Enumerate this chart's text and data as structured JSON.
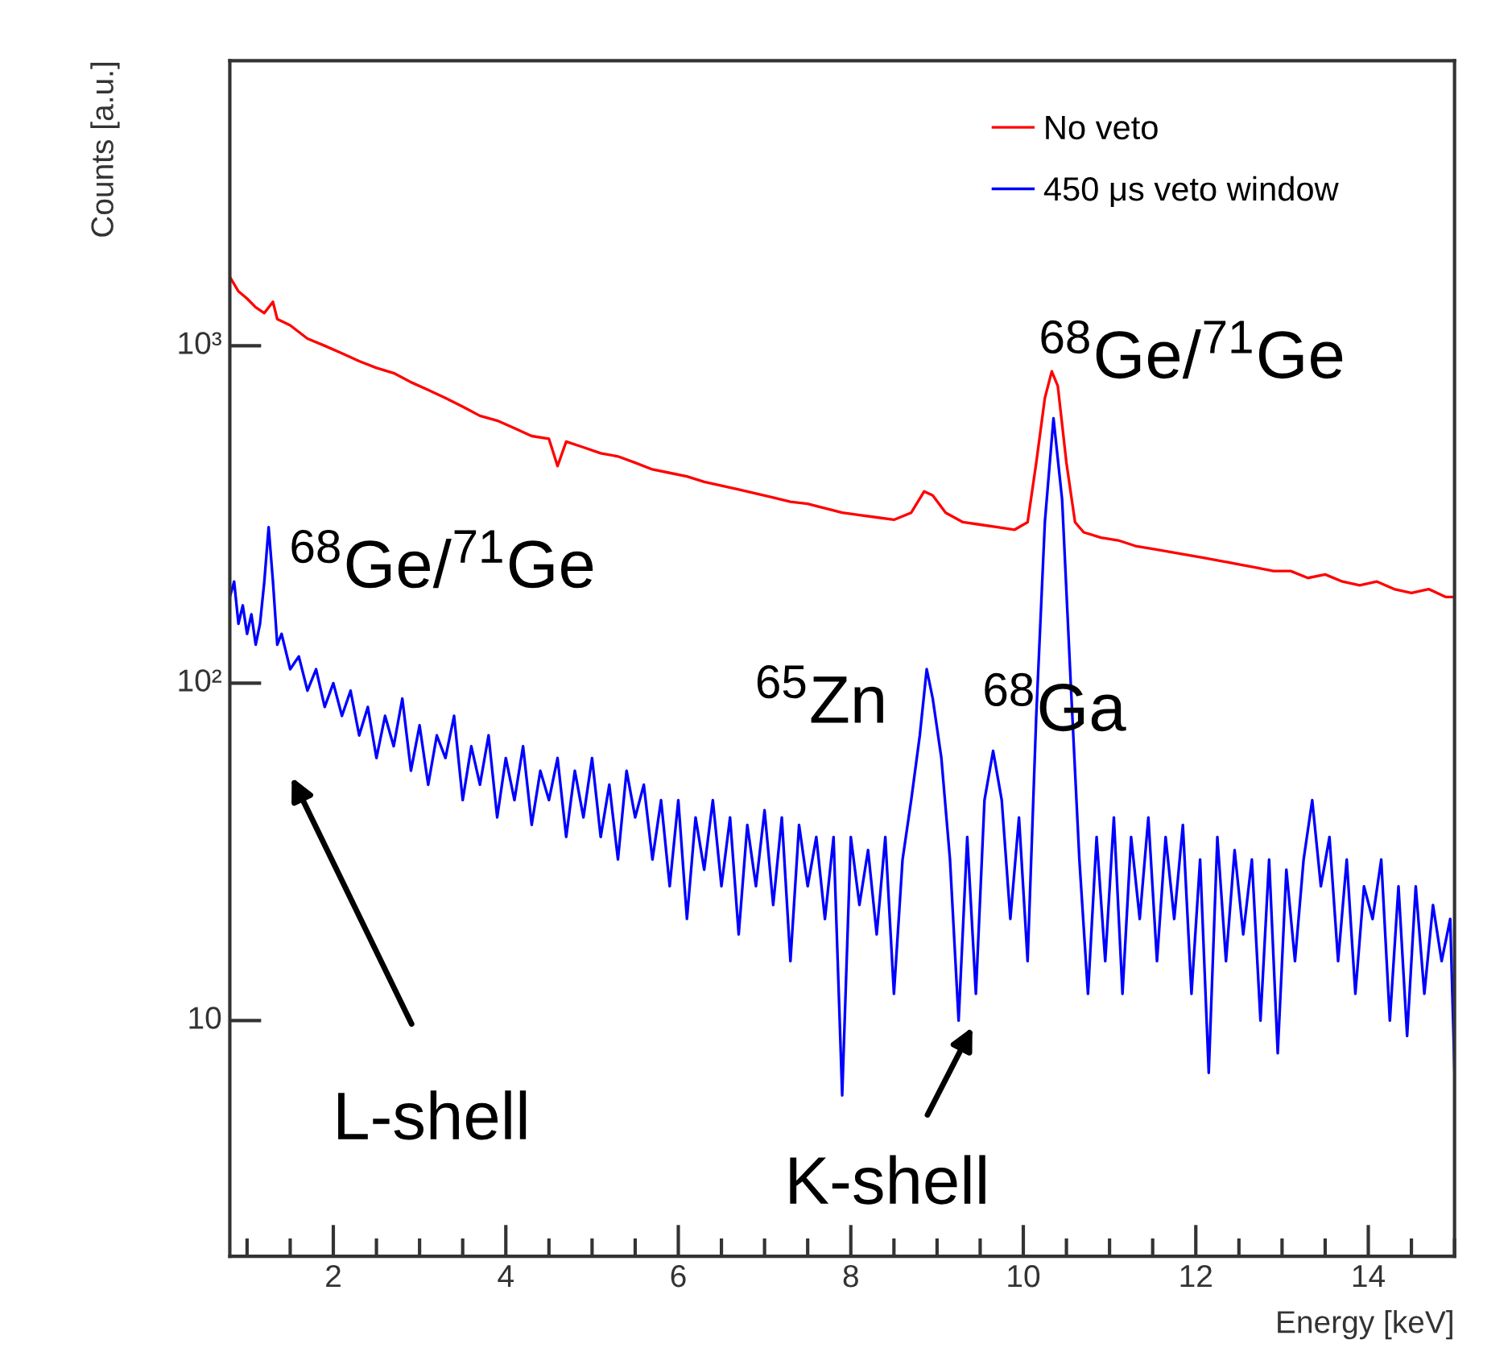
{
  "chart_data": {
    "type": "line",
    "xlabel": "Energy [keV]",
    "ylabel": "Counts [a.u.]",
    "xlim": [
      0.8,
      15
    ],
    "xticks": [
      2,
      4,
      6,
      8,
      10,
      12,
      14
    ],
    "ylim": [
      2,
      7000
    ],
    "yticks": [
      10,
      {
        "value": 100,
        "label": "10²"
      },
      {
        "value": 1000,
        "label": "10³"
      }
    ],
    "log": "y",
    "grid": false,
    "legend": "top right",
    "line_style": "solid",
    "series": [
      {
        "name": "No veto",
        "color": "#ff0000",
        "x": [
          0.8,
          0.9,
          1.0,
          1.1,
          1.2,
          1.3,
          1.35,
          1.5,
          1.7,
          1.9,
          2.1,
          2.3,
          2.5,
          2.7,
          2.9,
          3.1,
          3.3,
          3.5,
          3.7,
          3.9,
          4.1,
          4.3,
          4.5,
          4.6,
          4.7,
          4.9,
          5.1,
          5.3,
          5.5,
          5.7,
          5.9,
          6.1,
          6.3,
          6.5,
          6.7,
          6.9,
          7.1,
          7.3,
          7.5,
          7.7,
          7.9,
          8.1,
          8.3,
          8.5,
          8.7,
          8.85,
          8.95,
          9.1,
          9.3,
          9.5,
          9.7,
          9.9,
          10.05,
          10.15,
          10.25,
          10.33,
          10.4,
          10.5,
          10.6,
          10.7,
          10.9,
          11.1,
          11.3,
          11.5,
          11.7,
          11.9,
          12.1,
          12.3,
          12.5,
          12.7,
          12.9,
          13.1,
          13.3,
          13.5,
          13.7,
          13.9,
          14.1,
          14.3,
          14.5,
          14.7,
          14.9,
          15.0
        ],
        "values": [
          1600,
          1450,
          1380,
          1300,
          1250,
          1350,
          1200,
          1150,
          1050,
          1000,
          950,
          900,
          860,
          830,
          780,
          740,
          700,
          660,
          620,
          600,
          570,
          540,
          530,
          440,
          520,
          500,
          480,
          470,
          450,
          430,
          420,
          410,
          395,
          385,
          375,
          365,
          355,
          345,
          340,
          330,
          320,
          315,
          310,
          305,
          320,
          370,
          360,
          320,
          300,
          295,
          290,
          285,
          300,
          450,
          700,
          840,
          760,
          450,
          300,
          280,
          270,
          265,
          255,
          250,
          245,
          240,
          235,
          230,
          225,
          220,
          215,
          215,
          205,
          210,
          200,
          195,
          200,
          190,
          185,
          190,
          180,
          180
        ]
      },
      {
        "name": "450 μs veto window",
        "color": "#0000ff",
        "x": [
          0.8,
          0.85,
          0.9,
          0.95,
          1.0,
          1.05,
          1.1,
          1.15,
          1.2,
          1.25,
          1.3,
          1.35,
          1.4,
          1.5,
          1.6,
          1.7,
          1.8,
          1.9,
          2.0,
          2.1,
          2.2,
          2.3,
          2.4,
          2.5,
          2.6,
          2.7,
          2.8,
          2.9,
          3.0,
          3.1,
          3.2,
          3.3,
          3.4,
          3.5,
          3.6,
          3.7,
          3.8,
          3.9,
          4.0,
          4.1,
          4.2,
          4.3,
          4.4,
          4.5,
          4.6,
          4.7,
          4.8,
          4.9,
          5.0,
          5.1,
          5.2,
          5.3,
          5.4,
          5.5,
          5.6,
          5.7,
          5.8,
          5.9,
          6.0,
          6.1,
          6.2,
          6.3,
          6.4,
          6.5,
          6.6,
          6.7,
          6.8,
          6.9,
          7.0,
          7.1,
          7.2,
          7.3,
          7.4,
          7.5,
          7.6,
          7.7,
          7.8,
          7.9,
          8.0,
          8.1,
          8.2,
          8.3,
          8.4,
          8.5,
          8.6,
          8.7,
          8.8,
          8.88,
          8.95,
          9.05,
          9.15,
          9.25,
          9.35,
          9.45,
          9.55,
          9.65,
          9.75,
          9.85,
          9.95,
          10.05,
          10.15,
          10.25,
          10.35,
          10.45,
          10.55,
          10.65,
          10.75,
          10.85,
          10.95,
          11.05,
          11.15,
          11.25,
          11.35,
          11.45,
          11.55,
          11.65,
          11.75,
          11.85,
          11.95,
          12.05,
          12.15,
          12.25,
          12.35,
          12.45,
          12.55,
          12.65,
          12.75,
          12.85,
          12.95,
          13.05,
          13.15,
          13.25,
          13.35,
          13.45,
          13.55,
          13.65,
          13.75,
          13.85,
          13.95,
          14.05,
          14.15,
          14.25,
          14.35,
          14.45,
          14.55,
          14.65,
          14.75,
          14.85,
          14.95,
          15.0
        ],
        "values": [
          180,
          200,
          150,
          170,
          140,
          160,
          130,
          150,
          200,
          290,
          200,
          130,
          140,
          110,
          120,
          95,
          110,
          85,
          100,
          80,
          95,
          70,
          85,
          60,
          80,
          65,
          90,
          55,
          75,
          50,
          70,
          60,
          80,
          45,
          65,
          50,
          70,
          40,
          60,
          45,
          65,
          38,
          55,
          45,
          60,
          35,
          55,
          40,
          60,
          35,
          50,
          30,
          55,
          40,
          50,
          30,
          45,
          25,
          45,
          20,
          40,
          28,
          45,
          25,
          40,
          18,
          38,
          25,
          42,
          22,
          40,
          15,
          38,
          25,
          35,
          20,
          35,
          6,
          35,
          22,
          32,
          18,
          35,
          12,
          30,
          45,
          70,
          110,
          90,
          60,
          30,
          10,
          35,
          12,
          45,
          63,
          45,
          20,
          40,
          15,
          80,
          300,
          610,
          350,
          100,
          30,
          12,
          35,
          15,
          40,
          12,
          35,
          20,
          40,
          15,
          35,
          20,
          38,
          12,
          30,
          7,
          35,
          15,
          32,
          18,
          30,
          10,
          30,
          8,
          28,
          15,
          30,
          45,
          25,
          35,
          15,
          30,
          12,
          25,
          20,
          30,
          10,
          25,
          9,
          25,
          12,
          22,
          15,
          20,
          7
        ]
      }
    ],
    "annotations": [
      {
        "text": "$^{68}$Ge/$^{71}$Ge",
        "x": 10.33,
        "y": 840
      },
      {
        "text": "$^{68}$Ge/$^{71}$Ge",
        "x": 1.25,
        "y": 290
      },
      {
        "text": "$^{65}$Zn",
        "x": 8.88,
        "y": 110
      },
      {
        "text": "$^{68}$Ga",
        "x": 9.65,
        "y": 63
      },
      "L-shell",
      "K-shell"
    ]
  }
}
